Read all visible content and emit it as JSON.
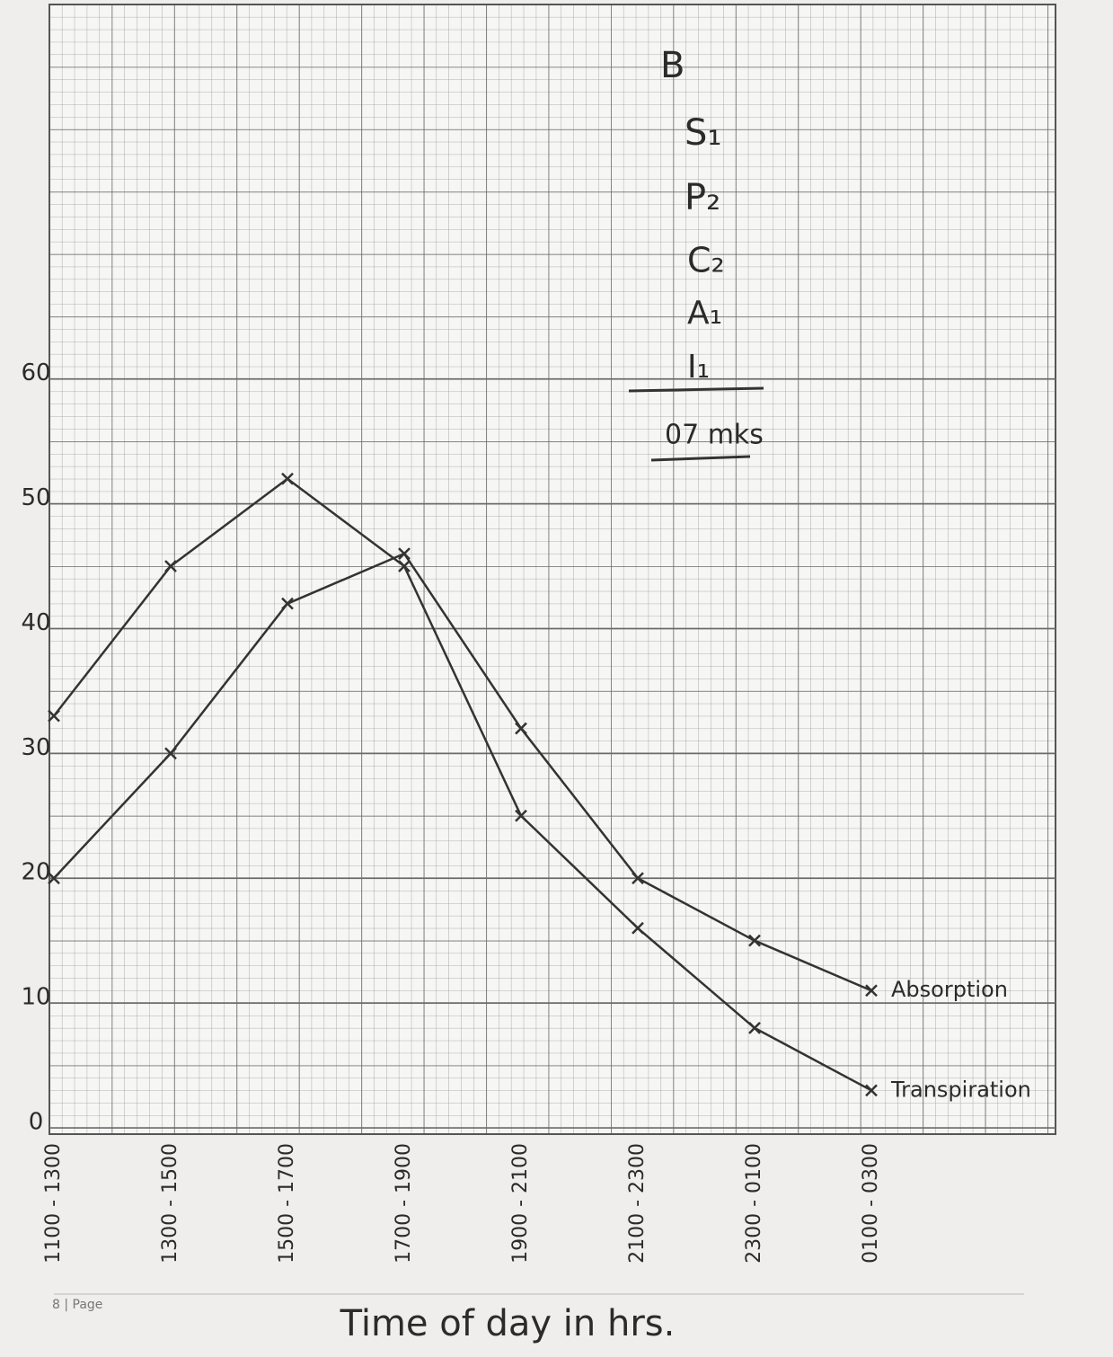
{
  "chart_data": {
    "type": "line",
    "x_label": "Time of day in hrs.",
    "categories": [
      "1100 - 1300",
      "1300 - 1500",
      "1500 - 1700",
      "1700 - 1900",
      "1900 - 2100",
      "2100 - 2300",
      "2300 - 0100",
      "0100 - 0300"
    ],
    "series": [
      {
        "name": "Transpiration",
        "color": "#333333",
        "values": [
          33,
          45,
          52,
          45,
          25,
          16,
          8,
          3
        ]
      },
      {
        "name": "Absorption",
        "color": "#333333",
        "values": [
          20,
          30,
          42,
          46,
          32,
          20,
          15,
          11
        ]
      }
    ],
    "ylim": [
      0,
      90
    ],
    "yticks": [
      0,
      10,
      20,
      30,
      40,
      50,
      60
    ],
    "grid": true,
    "annotations": [
      "B",
      "S₁",
      "P₂",
      "C₂",
      "A₁",
      "I₁",
      "07 mks"
    ],
    "footer": "8 | Page"
  }
}
